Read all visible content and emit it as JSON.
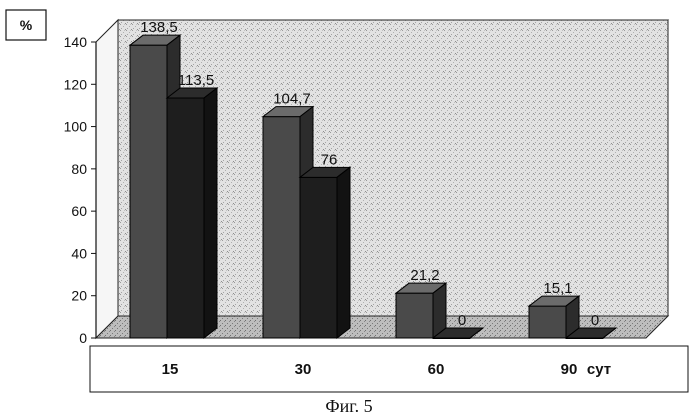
{
  "chart_data": {
    "type": "bar",
    "categories": [
      "15",
      "30",
      "60",
      "90"
    ],
    "x_unit": "сут",
    "y_unit": "%",
    "ylim": [
      0,
      140
    ],
    "yticks": [
      0,
      20,
      40,
      60,
      80,
      100,
      120,
      140
    ],
    "grid": false,
    "legend": "none",
    "style": "3d",
    "series": [
      {
        "values": [
          138.5,
          104.7,
          21.2,
          15.1
        ],
        "value_labels": [
          "138,5",
          "104,7",
          "21,2",
          "15,1"
        ],
        "color": "#4a4a4a"
      },
      {
        "values": [
          113.5,
          76,
          0,
          0
        ],
        "value_labels": [
          "113,5",
          "76",
          "0",
          "0"
        ],
        "color": "#1e1e1e"
      }
    ]
  },
  "caption": "Фиг. 5"
}
